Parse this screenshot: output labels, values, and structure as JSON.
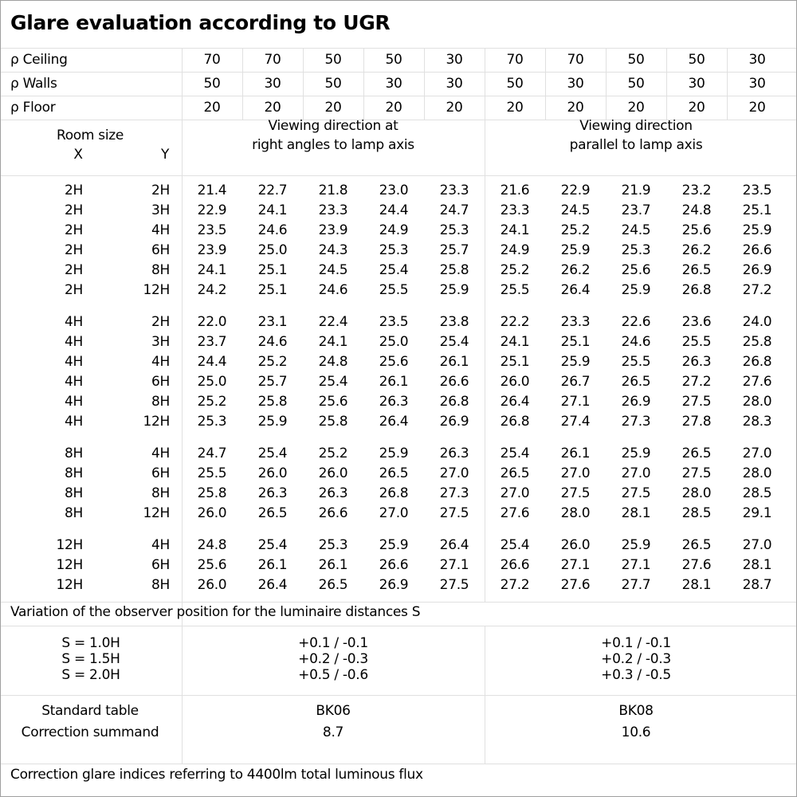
{
  "title": "Glare evaluation according to UGR",
  "reflectances": [
    {
      "label": "ρ Ceiling",
      "values": [
        "70",
        "70",
        "50",
        "50",
        "30",
        "70",
        "70",
        "50",
        "50",
        "30"
      ]
    },
    {
      "label": "ρ Walls",
      "values": [
        "50",
        "30",
        "50",
        "30",
        "30",
        "50",
        "30",
        "50",
        "30",
        "30"
      ]
    },
    {
      "label": "ρ Floor",
      "values": [
        "20",
        "20",
        "20",
        "20",
        "20",
        "20",
        "20",
        "20",
        "20",
        "20"
      ]
    }
  ],
  "header": {
    "room_size": "Room size",
    "x_label": "X",
    "y_label": "Y",
    "right_angles": [
      "Viewing direction at",
      "right angles to lamp axis"
    ],
    "parallel": [
      "Viewing direction",
      "parallel to lamp axis"
    ]
  },
  "groups": [
    {
      "rows": [
        {
          "x": "2H",
          "y": "2H",
          "v": [
            "21.4",
            "22.7",
            "21.8",
            "23.0",
            "23.3",
            "21.6",
            "22.9",
            "21.9",
            "23.2",
            "23.5"
          ]
        },
        {
          "x": "2H",
          "y": "3H",
          "v": [
            "22.9",
            "24.1",
            "23.3",
            "24.4",
            "24.7",
            "23.3",
            "24.5",
            "23.7",
            "24.8",
            "25.1"
          ]
        },
        {
          "x": "2H",
          "y": "4H",
          "v": [
            "23.5",
            "24.6",
            "23.9",
            "24.9",
            "25.3",
            "24.1",
            "25.2",
            "24.5",
            "25.6",
            "25.9"
          ]
        },
        {
          "x": "2H",
          "y": "6H",
          "v": [
            "23.9",
            "25.0",
            "24.3",
            "25.3",
            "25.7",
            "24.9",
            "25.9",
            "25.3",
            "26.2",
            "26.6"
          ]
        },
        {
          "x": "2H",
          "y": "8H",
          "v": [
            "24.1",
            "25.1",
            "24.5",
            "25.4",
            "25.8",
            "25.2",
            "26.2",
            "25.6",
            "26.5",
            "26.9"
          ]
        },
        {
          "x": "2H",
          "y": "12H",
          "v": [
            "24.2",
            "25.1",
            "24.6",
            "25.5",
            "25.9",
            "25.5",
            "26.4",
            "25.9",
            "26.8",
            "27.2"
          ]
        }
      ]
    },
    {
      "rows": [
        {
          "x": "4H",
          "y": "2H",
          "v": [
            "22.0",
            "23.1",
            "22.4",
            "23.5",
            "23.8",
            "22.2",
            "23.3",
            "22.6",
            "23.6",
            "24.0"
          ]
        },
        {
          "x": "4H",
          "y": "3H",
          "v": [
            "23.7",
            "24.6",
            "24.1",
            "25.0",
            "25.4",
            "24.1",
            "25.1",
            "24.6",
            "25.5",
            "25.8"
          ]
        },
        {
          "x": "4H",
          "y": "4H",
          "v": [
            "24.4",
            "25.2",
            "24.8",
            "25.6",
            "26.1",
            "25.1",
            "25.9",
            "25.5",
            "26.3",
            "26.8"
          ]
        },
        {
          "x": "4H",
          "y": "6H",
          "v": [
            "25.0",
            "25.7",
            "25.4",
            "26.1",
            "26.6",
            "26.0",
            "26.7",
            "26.5",
            "27.2",
            "27.6"
          ]
        },
        {
          "x": "4H",
          "y": "8H",
          "v": [
            "25.2",
            "25.8",
            "25.6",
            "26.3",
            "26.8",
            "26.4",
            "27.1",
            "26.9",
            "27.5",
            "28.0"
          ]
        },
        {
          "x": "4H",
          "y": "12H",
          "v": [
            "25.3",
            "25.9",
            "25.8",
            "26.4",
            "26.9",
            "26.8",
            "27.4",
            "27.3",
            "27.8",
            "28.3"
          ]
        }
      ]
    },
    {
      "rows": [
        {
          "x": "8H",
          "y": "4H",
          "v": [
            "24.7",
            "25.4",
            "25.2",
            "25.9",
            "26.3",
            "25.4",
            "26.1",
            "25.9",
            "26.5",
            "27.0"
          ]
        },
        {
          "x": "8H",
          "y": "6H",
          "v": [
            "25.5",
            "26.0",
            "26.0",
            "26.5",
            "27.0",
            "26.5",
            "27.0",
            "27.0",
            "27.5",
            "28.0"
          ]
        },
        {
          "x": "8H",
          "y": "8H",
          "v": [
            "25.8",
            "26.3",
            "26.3",
            "26.8",
            "27.3",
            "27.0",
            "27.5",
            "27.5",
            "28.0",
            "28.5"
          ]
        },
        {
          "x": "8H",
          "y": "12H",
          "v": [
            "26.0",
            "26.5",
            "26.6",
            "27.0",
            "27.5",
            "27.6",
            "28.0",
            "28.1",
            "28.5",
            "29.1"
          ]
        }
      ]
    },
    {
      "rows": [
        {
          "x": "12H",
          "y": "4H",
          "v": [
            "24.8",
            "25.4",
            "25.3",
            "25.9",
            "26.4",
            "25.4",
            "26.0",
            "25.9",
            "26.5",
            "27.0"
          ]
        },
        {
          "x": "12H",
          "y": "6H",
          "v": [
            "25.6",
            "26.1",
            "26.1",
            "26.6",
            "27.1",
            "26.6",
            "27.1",
            "27.1",
            "27.6",
            "28.1"
          ]
        },
        {
          "x": "12H",
          "y": "8H",
          "v": [
            "26.0",
            "26.4",
            "26.5",
            "26.9",
            "27.5",
            "27.2",
            "27.6",
            "27.7",
            "28.1",
            "28.7"
          ]
        }
      ]
    }
  ],
  "variation": {
    "label": "Variation of the observer position for the luminaire distances S",
    "rows": [
      {
        "s": "S = 1.0H",
        "right": "+0.1 / -0.1",
        "parallel": "+0.1 / -0.1"
      },
      {
        "s": "S = 1.5H",
        "right": "+0.2 / -0.3",
        "parallel": "+0.2 / -0.3"
      },
      {
        "s": "S = 2.0H",
        "right": "+0.5 / -0.6",
        "parallel": "+0.3 / -0.5"
      }
    ]
  },
  "standard": {
    "label": "Standard table",
    "right": "BK06",
    "parallel": "BK08"
  },
  "correction": {
    "label": "Correction summand",
    "right": "8.7",
    "parallel": "10.6"
  },
  "footer": "Correction glare indices referring to 4400lm total luminous flux"
}
